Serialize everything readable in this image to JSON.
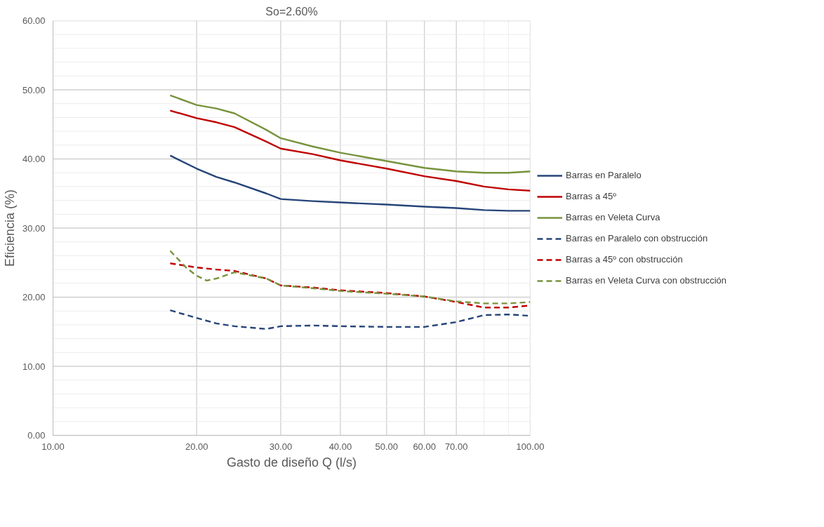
{
  "chart_data": {
    "type": "line",
    "title": "So=2.60%",
    "xlabel": "Gasto de diseño Q (l/s)",
    "ylabel": "Eficiencia (%)",
    "log": "x",
    "x": [
      17.6,
      20,
      22,
      24,
      28,
      30,
      35,
      40,
      50,
      60,
      70,
      80,
      90,
      100
    ],
    "xlim": [
      10,
      100
    ],
    "xticks": [
      {
        "value": 10,
        "label": "10.00"
      },
      {
        "value": 20,
        "label": "20.00"
      },
      {
        "value": 30,
        "label": "30.00"
      },
      {
        "value": 40,
        "label": "40.00"
      },
      {
        "value": 50,
        "label": "50.00"
      },
      {
        "value": 60,
        "label": "60.00"
      },
      {
        "value": 70,
        "label": "70.00"
      },
      {
        "value": 80,
        "label": null
      },
      {
        "value": 90,
        "label": null
      },
      {
        "value": 100,
        "label": "100.00"
      }
    ],
    "ylim": [
      0,
      60
    ],
    "yticks": [
      {
        "value": 0,
        "label": "0.00"
      },
      {
        "value": 2,
        "label": null
      },
      {
        "value": 4,
        "label": null
      },
      {
        "value": 6,
        "label": null
      },
      {
        "value": 8,
        "label": null
      },
      {
        "value": 10,
        "label": "10.00"
      },
      {
        "value": 12,
        "label": null
      },
      {
        "value": 14,
        "label": null
      },
      {
        "value": 16,
        "label": null
      },
      {
        "value": 18,
        "label": null
      },
      {
        "value": 20,
        "label": "20.00"
      },
      {
        "value": 22,
        "label": null
      },
      {
        "value": 24,
        "label": null
      },
      {
        "value": 26,
        "label": null
      },
      {
        "value": 28,
        "label": null
      },
      {
        "value": 30,
        "label": "30.00"
      },
      {
        "value": 32,
        "label": null
      },
      {
        "value": 34,
        "label": null
      },
      {
        "value": 36,
        "label": null
      },
      {
        "value": 38,
        "label": null
      },
      {
        "value": 40,
        "label": "40.00"
      },
      {
        "value": 42,
        "label": null
      },
      {
        "value": 44,
        "label": null
      },
      {
        "value": 46,
        "label": null
      },
      {
        "value": 48,
        "label": null
      },
      {
        "value": 50,
        "label": "50.00"
      },
      {
        "value": 52,
        "label": null
      },
      {
        "value": 54,
        "label": null
      },
      {
        "value": 56,
        "label": null
      },
      {
        "value": 58,
        "label": null
      },
      {
        "value": 60,
        "label": "60.00"
      }
    ],
    "grid": true,
    "legend": "right",
    "marker": "none",
    "series": [
      {
        "name": "Barras en Paralelo",
        "color": "#264478",
        "line_style": "solid",
        "values": [
          40.5,
          38.6,
          37.4,
          36.6,
          35.0,
          34.2,
          33.9,
          33.7,
          33.4,
          33.1,
          32.9,
          32.6,
          32.5,
          32.5
        ]
      },
      {
        "name": "Barras a 45º",
        "color": "#c00000",
        "line_style": "solid",
        "values": [
          47.0,
          45.9,
          45.3,
          44.6,
          42.5,
          41.5,
          40.7,
          39.8,
          38.6,
          37.5,
          36.8,
          36.0,
          35.6,
          35.4
        ]
      },
      {
        "name": "Barras en Veleta Curva",
        "color": "#77933c",
        "line_style": "solid",
        "values": [
          49.2,
          47.8,
          47.3,
          46.6,
          44.2,
          43.0,
          41.8,
          40.9,
          39.7,
          38.7,
          38.2,
          38.0,
          38.0,
          38.2
        ]
      },
      {
        "name": "Barras en Paralelo con obstrucción",
        "color": "#264478",
        "line_style": "dashed",
        "values": [
          18.1,
          17.0,
          16.2,
          15.8,
          15.4,
          15.8,
          15.9,
          15.8,
          15.7,
          15.7,
          16.4,
          17.4,
          17.5,
          17.3
        ]
      },
      {
        "name": "Barras a 45º con obstrucción",
        "color": "#c00000",
        "line_style": "dashed",
        "values": [
          24.9,
          24.3,
          24.0,
          23.8,
          22.7,
          21.7,
          21.4,
          21.0,
          20.6,
          20.1,
          19.3,
          18.5,
          18.5,
          18.8
        ]
      },
      {
        "name": "Barras en Veleta Curva con obstrucción",
        "color": "#77933c",
        "line_style": "dashed",
        "x": [
          17.6,
          19,
          20,
          21,
          22,
          24,
          28,
          30,
          35,
          40,
          50,
          60,
          70,
          80,
          90,
          100
        ],
        "values": [
          26.7,
          24.3,
          23.1,
          22.4,
          22.7,
          23.6,
          22.7,
          21.7,
          21.3,
          20.9,
          20.5,
          20.1,
          19.4,
          19.1,
          19.1,
          19.3
        ]
      }
    ]
  }
}
